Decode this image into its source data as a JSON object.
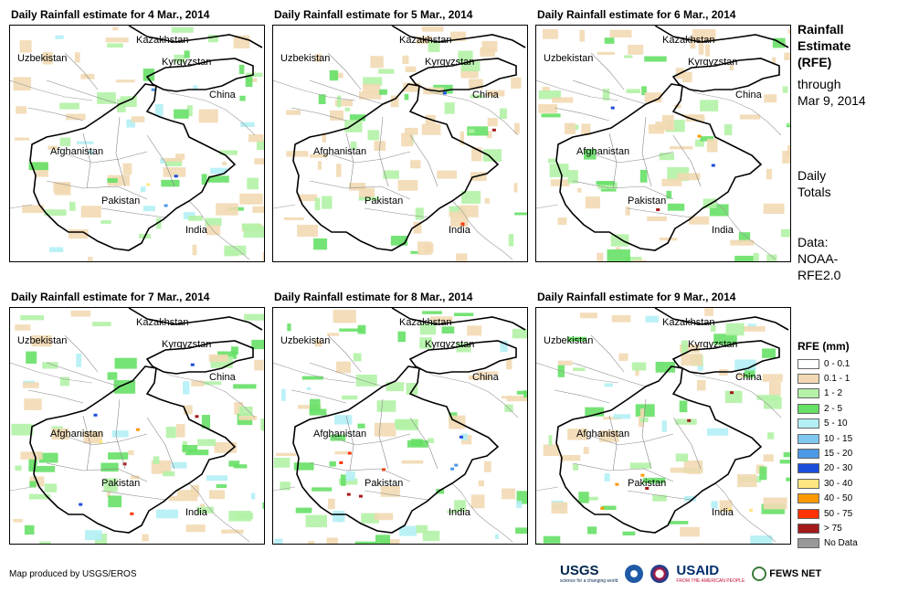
{
  "panels": [
    {
      "title": "Daily Rainfall estimate for 4 Mar., 2014",
      "variant": 0
    },
    {
      "title": "Daily Rainfall estimate for 5 Mar., 2014",
      "variant": 1
    },
    {
      "title": "Daily Rainfall estimate for 6 Mar., 2014",
      "variant": 2
    },
    {
      "title": "Daily Rainfall estimate for 7 Mar., 2014",
      "variant": 3
    },
    {
      "title": "Daily Rainfall estimate for 8 Mar., 2014",
      "variant": 4
    },
    {
      "title": "Daily Rainfall estimate for 9 Mar., 2014",
      "variant": 5
    }
  ],
  "country_labels": {
    "kazakhstan": "Kazakhstan",
    "uzbekistan": "Uzbekistan",
    "kyrgyzstan": "Kyrgyzstan",
    "china": "China",
    "afghanistan": "Afghanistan",
    "pakistan": "Pakistan",
    "india": "India"
  },
  "side": {
    "title_lines": [
      "Rainfall",
      "Estimate",
      "(RFE)"
    ],
    "through_lines": [
      "through",
      "Mar 9, 2014"
    ],
    "totals_lines": [
      "Daily",
      "Totals"
    ],
    "data_lines": [
      "Data:",
      "NOAA-",
      "RFE2.0"
    ]
  },
  "legend": {
    "title": "RFE (mm)",
    "items": [
      {
        "label": "0 - 0.1",
        "color": "#ffffff"
      },
      {
        "label": "0.1 - 1",
        "color": "#f2d9b3"
      },
      {
        "label": "1 - 2",
        "color": "#b3f2a6"
      },
      {
        "label": "2 - 5",
        "color": "#66e066"
      },
      {
        "label": "5 - 10",
        "color": "#b3f0f5"
      },
      {
        "label": "10 - 15",
        "color": "#80c7f0"
      },
      {
        "label": "15 - 20",
        "color": "#4d99e6"
      },
      {
        "label": "20 - 30",
        "color": "#1a4dd9"
      },
      {
        "label": "30 - 40",
        "color": "#ffe680"
      },
      {
        "label": "40 - 50",
        "color": "#ff9900"
      },
      {
        "label": "50 - 75",
        "color": "#ff3300"
      },
      {
        "label": "> 75",
        "color": "#a31a1a"
      },
      {
        "label": "No Data",
        "color": "#999999"
      }
    ]
  },
  "credit": "Map produced by USGS/EROS",
  "logos": {
    "usgs": "USGS",
    "usgs_tagline": "science for a changing world",
    "usaid": "USAID",
    "usaid_tagline": "FROM THE AMERICAN PEOPLE",
    "fews": "FEWS NET"
  }
}
